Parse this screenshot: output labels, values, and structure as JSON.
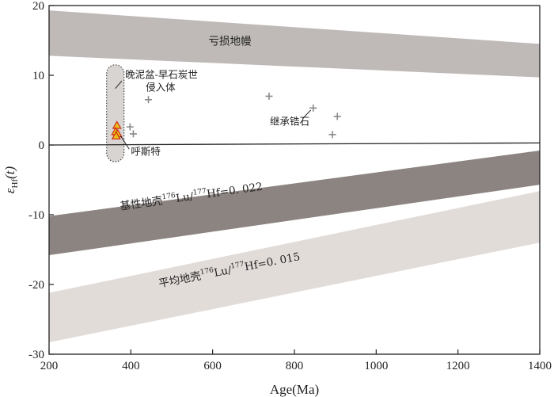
{
  "chart_data": {
    "type": "scatter",
    "xlabel": "Age(Ma)",
    "ylabel_main": "ε",
    "ylabel_sub": "Hf",
    "ylabel_suffix": "(t)",
    "xlim": [
      200,
      1400
    ],
    "ylim": [
      -30,
      20
    ],
    "xticks": [
      200,
      400,
      600,
      800,
      1000,
      1200,
      1400
    ],
    "yticks": [
      20,
      10,
      0,
      -10,
      -20,
      -30
    ],
    "zero_line": [
      [
        200,
        0
      ],
      [
        1400,
        0.3
      ]
    ],
    "bands": [
      {
        "name": "亏损地幔",
        "color": "#bfbab7",
        "upper": [
          [
            200,
            19.3
          ],
          [
            1400,
            14.5
          ]
        ],
        "lower": [
          [
            200,
            12.8
          ],
          [
            1400,
            9.7
          ]
        ],
        "label_at": [
          590,
          14.4
        ],
        "angle": 0
      },
      {
        "name": "基性地壳",
        "label_main": "基性地壳",
        "label_sup1": "176",
        "label_mid": "Lu/",
        "label_sup2": "177",
        "label_tail": "Hf=0. 022",
        "color": "#8c8480",
        "upper": [
          [
            200,
            -10.2
          ],
          [
            1400,
            -0.8
          ]
        ],
        "lower": [
          [
            200,
            -15.8
          ],
          [
            1400,
            -5.7
          ]
        ],
        "label_at": [
          375,
          -9.3
        ],
        "angle": -8
      },
      {
        "name": "平均地壳",
        "label_main": "平均地壳",
        "label_sup1": "176",
        "label_mid": "Lu/",
        "label_sup2": "177",
        "label_tail": "Hf=0. 015",
        "color": "#e2dcd9",
        "upper": [
          [
            200,
            -21.2
          ],
          [
            1400,
            -6.6
          ]
        ],
        "lower": [
          [
            200,
            -28.3
          ],
          [
            1400,
            -14.0
          ]
        ],
        "label_at": [
          470,
          -20.4
        ],
        "angle": -11
      }
    ],
    "region": {
      "name": "晚泥盆-早石炭世侵入体",
      "color": "#d8d4d2",
      "x_center": 362,
      "y_top": 11.5,
      "y_bottom": -2.4,
      "half_width": 11
    },
    "series": [
      {
        "name": "继承锆石",
        "marker": "plus",
        "color": "#8a8a8a",
        "points": [
          [
            398,
            2.6
          ],
          [
            406,
            1.6
          ],
          [
            443,
            6.5
          ],
          [
            738,
            7.0
          ],
          [
            846,
            5.3
          ],
          [
            893,
            1.5
          ],
          [
            905,
            4.1
          ]
        ]
      },
      {
        "name": "呼斯特",
        "marker": "triangle",
        "color": "#e8c016",
        "stroke": "#d02010",
        "points": [
          [
            366,
            2.8
          ],
          [
            363,
            1.9
          ],
          [
            368,
            1.6
          ],
          [
            364,
            1.3
          ]
        ]
      }
    ],
    "annotations": [
      {
        "text_line1": "晚泥盆-早石炭世",
        "text_line2": "侵入体",
        "text_at": [
          386,
          9.6
        ],
        "line_from": [
          378,
          9.2
        ],
        "line_to": [
          362,
          8.1
        ]
      },
      {
        "text": "继承锆石",
        "text_at": [
          740,
          2.9
        ],
        "line_from": [
          820,
          3.8
        ],
        "line_to": [
          840,
          5.0
        ]
      },
      {
        "text": "呼斯特",
        "text_at": [
          400,
          -1.4
        ],
        "line_from": [
          396,
          -0.6
        ],
        "line_to": [
          375,
          1.3
        ]
      }
    ]
  }
}
